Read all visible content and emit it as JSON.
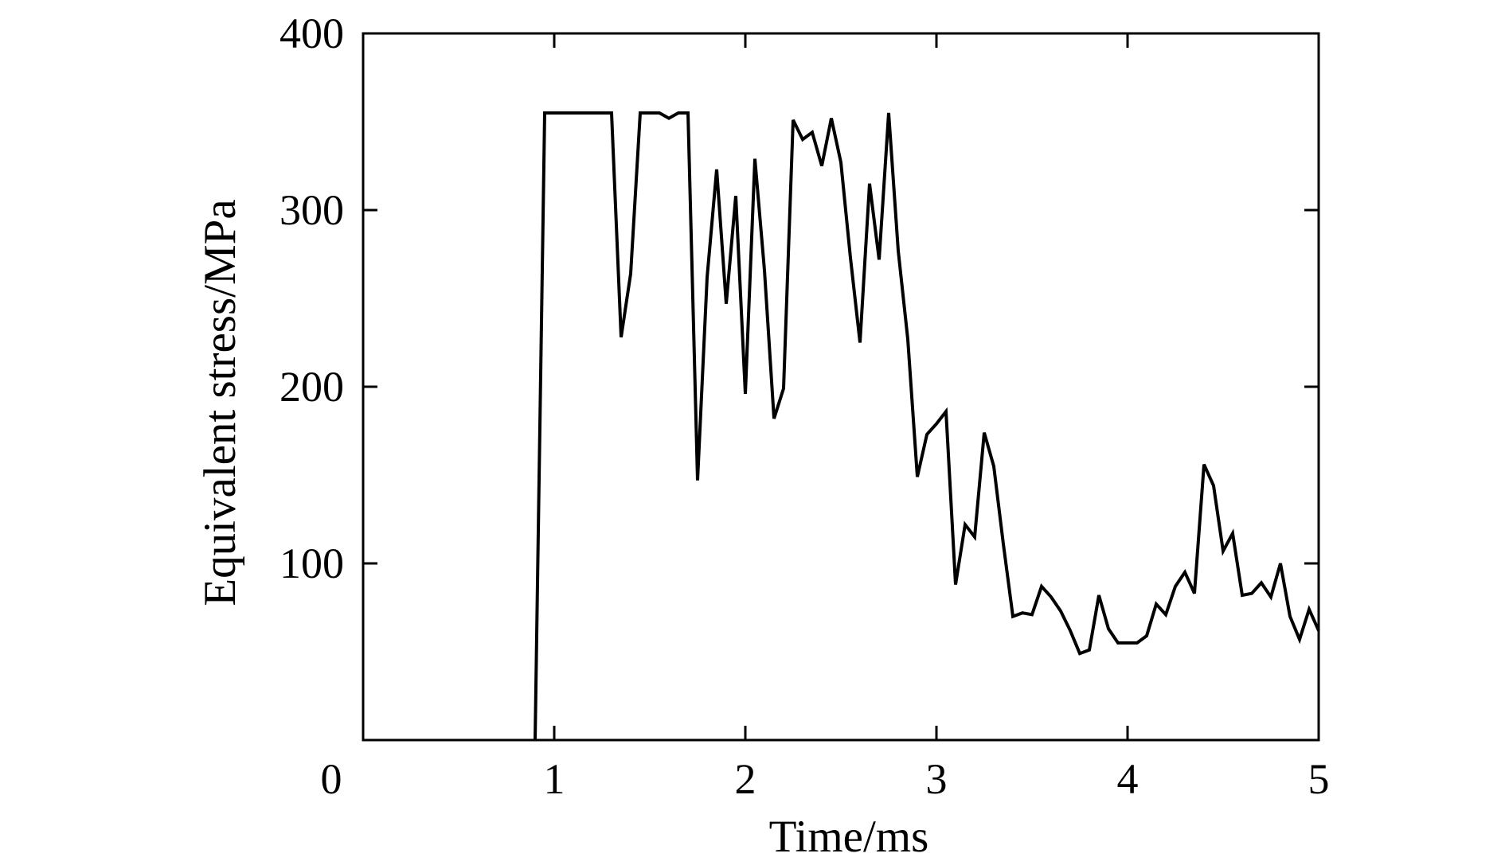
{
  "chart_data": {
    "type": "line",
    "title": "",
    "xlabel": "Time/ms",
    "ylabel": "Equivalent stress/MPa",
    "xlim": [
      0,
      5
    ],
    "ylim": [
      0,
      400
    ],
    "xticks": [
      1,
      2,
      3,
      4,
      5
    ],
    "yticks": [
      100,
      200,
      300,
      400
    ],
    "origin_label": "0",
    "grid": false,
    "legend": "none",
    "line_color": "#000000",
    "series": [
      {
        "x": [
          0.9,
          0.95,
          1.0,
          1.1,
          1.2,
          1.3,
          1.35,
          1.4,
          1.45,
          1.5,
          1.55,
          1.6,
          1.65,
          1.7,
          1.75,
          1.8,
          1.85,
          1.9,
          1.95,
          2.0,
          2.05,
          2.1,
          2.15,
          2.2,
          2.25,
          2.3,
          2.35,
          2.4,
          2.45,
          2.5,
          2.55,
          2.6,
          2.65,
          2.7,
          2.75,
          2.8,
          2.85,
          2.9,
          2.95,
          3.0,
          3.05,
          3.1,
          3.15,
          3.2,
          3.25,
          3.3,
          3.35,
          3.4,
          3.45,
          3.5,
          3.55,
          3.6,
          3.65,
          3.7,
          3.75,
          3.8,
          3.85,
          3.9,
          3.95,
          4.0,
          4.05,
          4.1,
          4.15,
          4.2,
          4.25,
          4.3,
          4.35,
          4.4,
          4.45,
          4.5,
          4.55,
          4.6,
          4.65,
          4.7,
          4.75,
          4.8,
          4.85,
          4.9,
          4.95,
          5.0
        ],
        "y": [
          0,
          355,
          355,
          355,
          355,
          355,
          228,
          264,
          355,
          355,
          355,
          352,
          355,
          355,
          147,
          262,
          323,
          247,
          308,
          196,
          329,
          266,
          182,
          199,
          351,
          340,
          344,
          325,
          352,
          327,
          273,
          225,
          315,
          272,
          355,
          277,
          227,
          149,
          173,
          179,
          186,
          88,
          122,
          115,
          174,
          155,
          111,
          70,
          72,
          71,
          87,
          81,
          73,
          62,
          49,
          51,
          82,
          63,
          55,
          55,
          55,
          59,
          77,
          71,
          87,
          95,
          83,
          156,
          144,
          107,
          117,
          82,
          83,
          89,
          81,
          100,
          70,
          57,
          74,
          62
        ]
      }
    ]
  }
}
